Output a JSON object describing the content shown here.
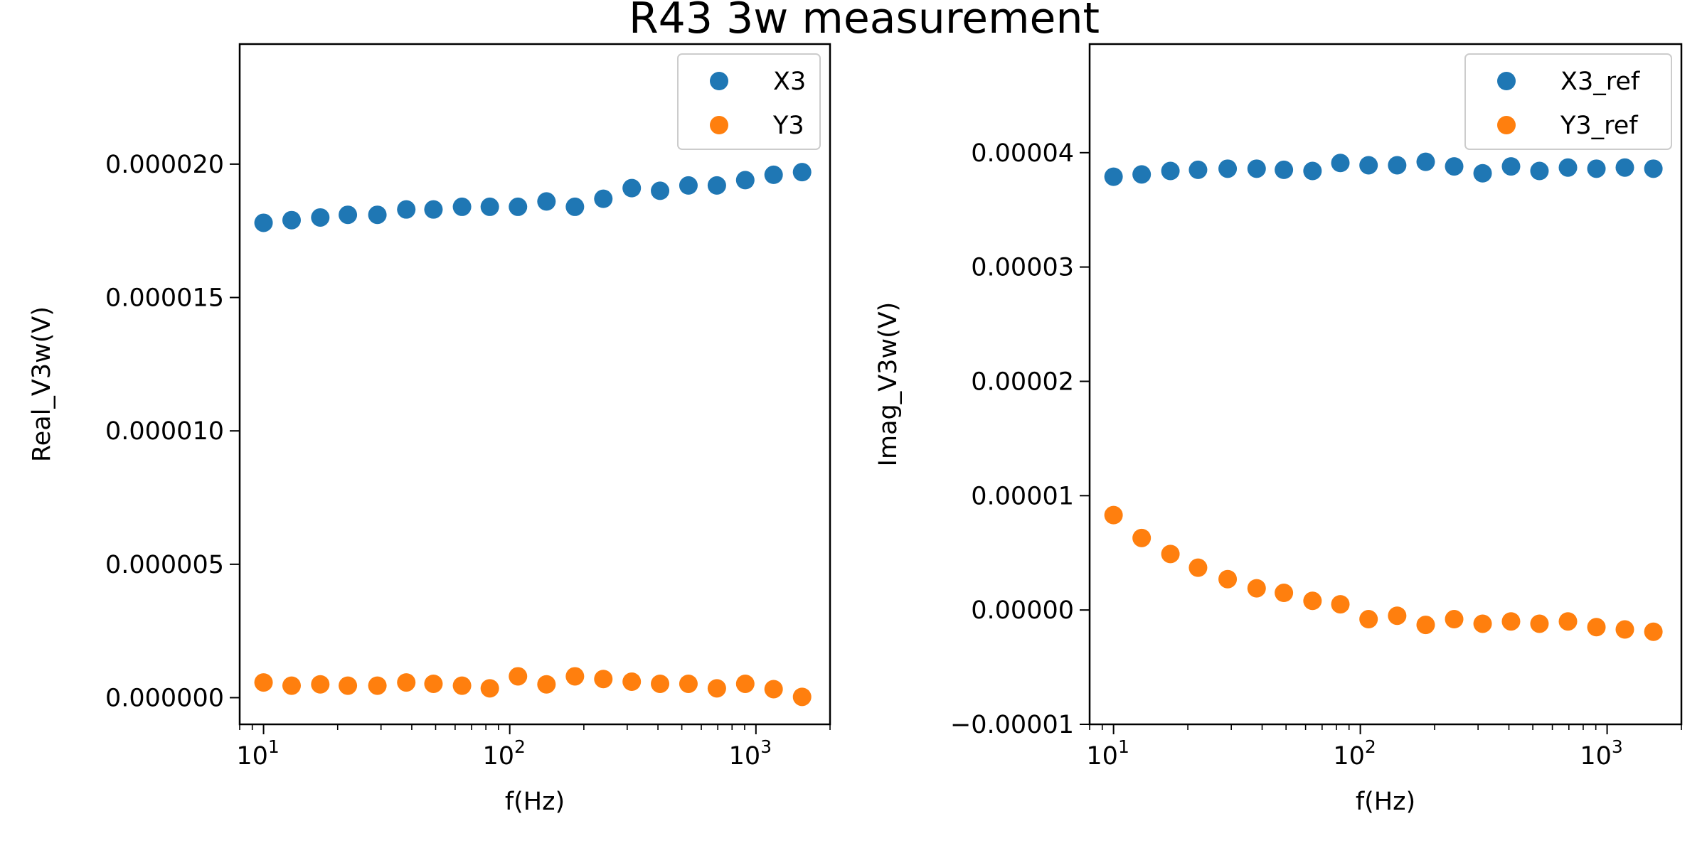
{
  "figure": {
    "title": "R43 3w measurement"
  },
  "chart_data": [
    {
      "type": "scatter",
      "xlabel": "f(Hz)",
      "ylabel": "Real_V3w(V)",
      "xscale": "log",
      "xlim": [
        8,
        2000
      ],
      "ylim": [
        -1e-06,
        2.45e-05
      ],
      "x_tick_values": [
        10,
        100,
        1000
      ],
      "x_tick_labels": [
        {
          "base": "10",
          "exp": "1"
        },
        {
          "base": "10",
          "exp": "2"
        },
        {
          "base": "10",
          "exp": "3"
        }
      ],
      "y_ticks": [
        0,
        5e-06,
        1e-05,
        1.5e-05,
        2e-05
      ],
      "y_tick_labels": [
        "0.000000",
        "0.000005",
        "0.000010",
        "0.000015",
        "0.000020"
      ],
      "grid": false,
      "legend": "top-right",
      "x": [
        10,
        13,
        17,
        22,
        29,
        38,
        49,
        64,
        83,
        108,
        141,
        184,
        240,
        313,
        408,
        532,
        694,
        905,
        1180,
        1540
      ],
      "series": [
        {
          "name": "X3",
          "color": "#1f77b4",
          "values": [
            1.78e-05,
            1.79e-05,
            1.8e-05,
            1.81e-05,
            1.81e-05,
            1.83e-05,
            1.83e-05,
            1.84e-05,
            1.84e-05,
            1.84e-05,
            1.86e-05,
            1.84e-05,
            1.87e-05,
            1.91e-05,
            1.9e-05,
            1.92e-05,
            1.92e-05,
            1.94e-05,
            1.96e-05,
            1.97e-05
          ]
        },
        {
          "name": "Y3",
          "color": "#ff7f0e",
          "values": [
            5.7e-07,
            4.5e-07,
            5e-07,
            4.5e-07,
            4.5e-07,
            5.7e-07,
            5.2e-07,
            4.5e-07,
            3.5e-07,
            8e-07,
            5e-07,
            8e-07,
            7e-07,
            6e-07,
            5.2e-07,
            5.2e-07,
            3.5e-07,
            5.2e-07,
            3.2e-07,
            3e-08
          ]
        }
      ]
    },
    {
      "type": "scatter",
      "xlabel": "f(Hz)",
      "ylabel": "Imag_V3w(V)",
      "xscale": "log",
      "xlim": [
        8,
        2000
      ],
      "ylim": [
        -1e-05,
        4.95e-05
      ],
      "x_tick_values": [
        10,
        100,
        1000
      ],
      "x_tick_labels": [
        {
          "base": "10",
          "exp": "1"
        },
        {
          "base": "10",
          "exp": "2"
        },
        {
          "base": "10",
          "exp": "3"
        }
      ],
      "y_ticks": [
        -1e-05,
        0,
        1e-05,
        2e-05,
        3e-05,
        4e-05
      ],
      "y_tick_labels": [
        "−0.00001",
        "0.00000",
        "0.00001",
        "0.00002",
        "0.00003",
        "0.00004"
      ],
      "grid": false,
      "legend": "top-right",
      "x": [
        10,
        13,
        17,
        22,
        29,
        38,
        49,
        64,
        83,
        108,
        141,
        184,
        240,
        313,
        408,
        532,
        694,
        905,
        1180,
        1540
      ],
      "series": [
        {
          "name": "X3_ref",
          "color": "#1f77b4",
          "values": [
            3.79e-05,
            3.81e-05,
            3.84e-05,
            3.85e-05,
            3.86e-05,
            3.86e-05,
            3.85e-05,
            3.84e-05,
            3.91e-05,
            3.89e-05,
            3.89e-05,
            3.92e-05,
            3.88e-05,
            3.82e-05,
            3.88e-05,
            3.84e-05,
            3.87e-05,
            3.86e-05,
            3.87e-05,
            3.86e-05
          ]
        },
        {
          "name": "Y3_ref",
          "color": "#ff7f0e",
          "values": [
            8.3e-06,
            6.3e-06,
            4.9e-06,
            3.7e-06,
            2.7e-06,
            1.9e-06,
            1.5e-06,
            8e-07,
            5e-07,
            -8e-07,
            -5e-07,
            -1.3e-06,
            -8e-07,
            -1.2e-06,
            -1e-06,
            -1.2e-06,
            -1e-06,
            -1.5e-06,
            -1.7e-06,
            -1.9e-06
          ]
        }
      ]
    }
  ]
}
